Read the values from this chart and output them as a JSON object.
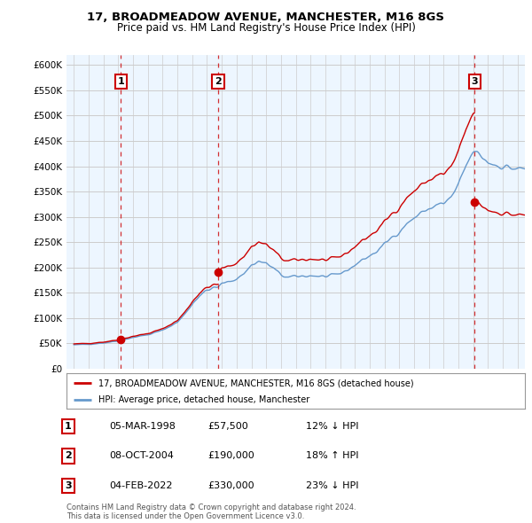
{
  "title": "17, BROADMEADOW AVENUE, MANCHESTER, M16 8GS",
  "subtitle": "Price paid vs. HM Land Registry's House Price Index (HPI)",
  "legend_label_red": "17, BROADMEADOW AVENUE, MANCHESTER, M16 8GS (detached house)",
  "legend_label_blue": "HPI: Average price, detached house, Manchester",
  "footer_line1": "Contains HM Land Registry data © Crown copyright and database right 2024.",
  "footer_line2": "This data is licensed under the Open Government Licence v3.0.",
  "table_rows": [
    {
      "num": "1",
      "date": "05-MAR-1998",
      "price": "£57,500",
      "hpi": "12% ↓ HPI"
    },
    {
      "num": "2",
      "date": "08-OCT-2004",
      "price": "£190,000",
      "hpi": "18% ↑ HPI"
    },
    {
      "num": "3",
      "date": "04-FEB-2022",
      "price": "£330,000",
      "hpi": "23% ↓ HPI"
    }
  ],
  "sale_points": [
    {
      "year": 1998.17,
      "price": 57500,
      "label": "1"
    },
    {
      "year": 2004.75,
      "price": 190000,
      "label": "2"
    },
    {
      "year": 2022.09,
      "price": 330000,
      "label": "3"
    }
  ],
  "ylim": [
    0,
    620000
  ],
  "yticks": [
    0,
    50000,
    100000,
    150000,
    200000,
    250000,
    300000,
    350000,
    400000,
    450000,
    500000,
    550000,
    600000
  ],
  "ytick_labels": [
    "£0",
    "£50K",
    "£100K",
    "£150K",
    "£200K",
    "£250K",
    "£300K",
    "£350K",
    "£400K",
    "£450K",
    "£500K",
    "£550K",
    "£600K"
  ],
  "xlim": [
    1994.5,
    2025.5
  ],
  "red_color": "#cc0000",
  "blue_color": "#6699cc",
  "shade_color": "#ddeeff",
  "bg_color": "#ffffff",
  "grid_color": "#cccccc"
}
